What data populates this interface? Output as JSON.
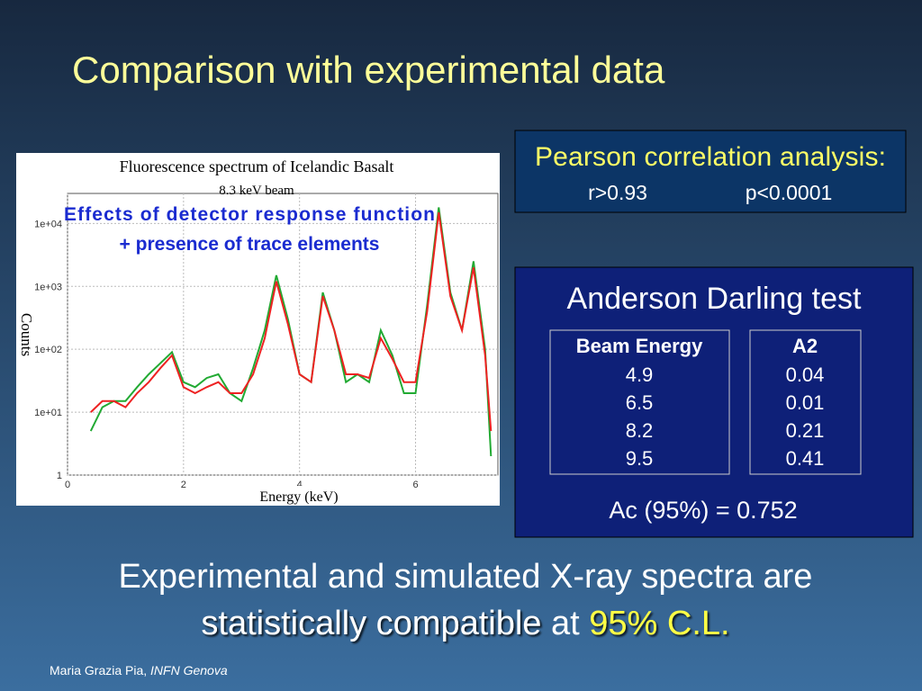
{
  "title": "Comparison with experimental data",
  "pearson": {
    "heading": "Pearson correlation analysis:",
    "r": "r>0.93",
    "p": "p<0.0001"
  },
  "anderson": {
    "heading": "Anderson Darling test",
    "table": {
      "headers": [
        "Beam Energy",
        "A2"
      ],
      "rows": [
        [
          "4.9",
          "0.04"
        ],
        [
          "6.5",
          "0.01"
        ],
        [
          "8.2",
          "0.21"
        ],
        [
          "9.5",
          "0.41"
        ]
      ]
    },
    "critical": "Ac (95%) = 0.752"
  },
  "conclusion": {
    "line1": "Experimental and simulated X-ray spectra are",
    "emphasis": "statistically compatible",
    "middle": "at",
    "level": "95% C.L."
  },
  "footer": {
    "author": "Maria Grazia Pia,",
    "affiliation": "INFN Genova"
  },
  "chart_data": {
    "type": "line",
    "title": "Fluorescence spectrum of Icelandic Basalt",
    "subtitle": "8.3 keV beam",
    "annotations": [
      "Effects of detector response function",
      "+ presence of trace elements"
    ],
    "xlabel": "Energy (keV)",
    "ylabel": "Counts",
    "x": [
      0.4,
      0.6,
      0.8,
      1.0,
      1.2,
      1.4,
      1.6,
      1.8,
      2.0,
      2.2,
      2.4,
      2.6,
      2.8,
      3.0,
      3.2,
      3.4,
      3.6,
      3.8,
      4.0,
      4.2,
      4.4,
      4.6,
      4.8,
      5.0,
      5.2,
      5.4,
      5.6,
      5.8,
      6.0,
      6.2,
      6.4,
      6.6,
      6.8,
      7.0,
      7.2,
      7.3
    ],
    "series": [
      {
        "color": "#22aa33",
        "values": [
          5,
          12,
          15,
          15,
          25,
          40,
          60,
          90,
          30,
          25,
          35,
          40,
          20,
          15,
          50,
          200,
          1500,
          300,
          40,
          30,
          800,
          200,
          30,
          40,
          30,
          200,
          80,
          20,
          20,
          500,
          18000,
          800,
          200,
          2500,
          100,
          2
        ]
      },
      {
        "color": "#ee2222",
        "values": [
          10,
          15,
          15,
          12,
          20,
          30,
          50,
          80,
          25,
          20,
          25,
          30,
          20,
          20,
          40,
          150,
          1200,
          250,
          40,
          30,
          700,
          200,
          40,
          40,
          35,
          150,
          70,
          30,
          30,
          400,
          15000,
          700,
          200,
          2000,
          80,
          5
        ]
      }
    ],
    "xlim": [
      0,
      7.42
    ],
    "xticks": [
      0,
      2,
      4,
      6
    ],
    "ylim": [
      1,
      30000
    ],
    "log_y": true,
    "yticks": [
      1,
      {
        "value": 10,
        "label": "1e+01"
      },
      {
        "value": 100,
        "label": "1e+02"
      },
      {
        "value": 1000,
        "label": "1e+03"
      },
      {
        "value": 10000,
        "label": "1e+04"
      }
    ],
    "grid": true
  }
}
